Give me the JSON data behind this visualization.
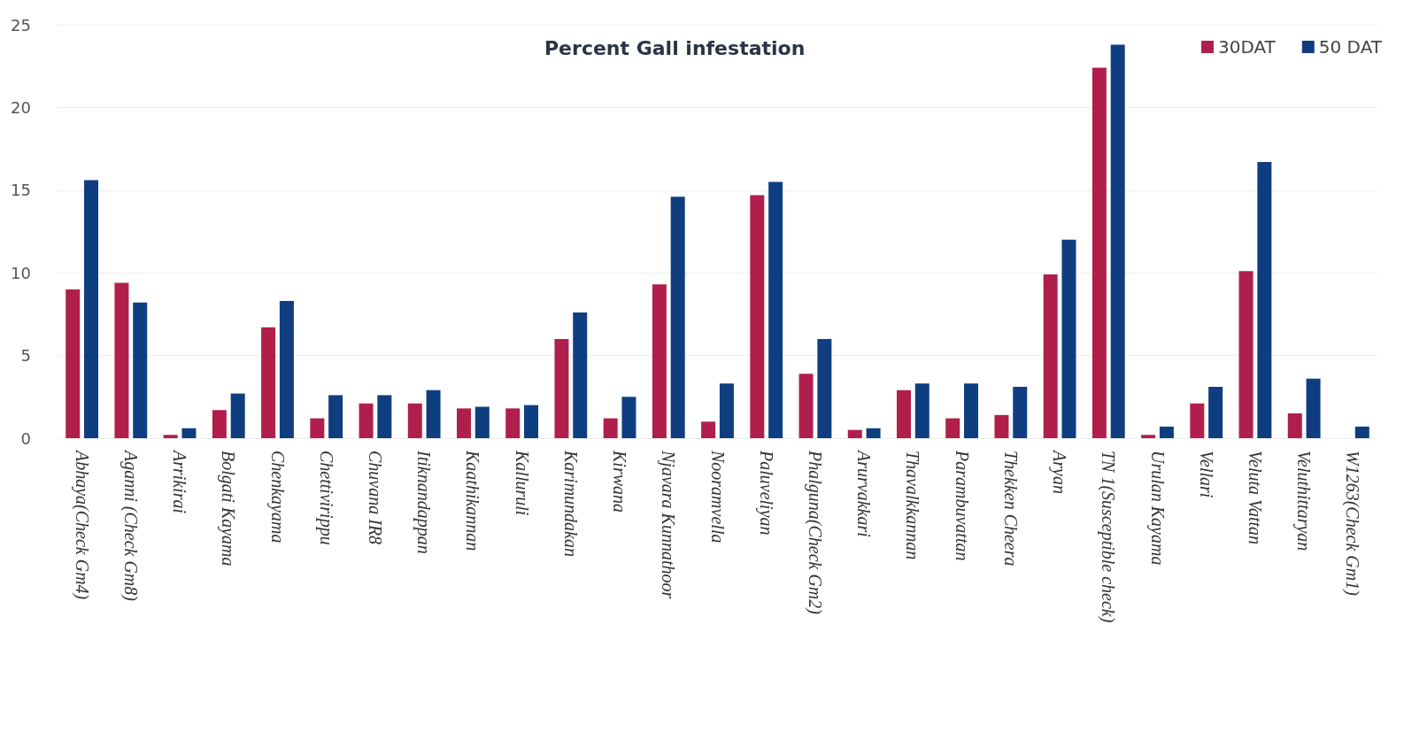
{
  "chart_data": {
    "type": "bar",
    "title": "Percent Gall infestation",
    "categories": [
      "Abhaya(Check Gm4)",
      "Aganni (Check Gm8)",
      "Arrikirai",
      "Bolgati Kayama",
      "Chenkayama",
      "Chettivirippu",
      "Chuvana IR8",
      "Itiknandappan",
      "Kaathikannan",
      "Kalluruli",
      "Karimundakan",
      "Kirwana",
      "Njavara Kunnathoor",
      "Nooramvella",
      "Paluveliyan",
      "Phalguna(Check Gm2)",
      "Arurvakkari",
      "Thavalkkannan",
      "Parambuvattan",
      "Thekken Cheera",
      "Aryan",
      "TN 1(Susceptible check)",
      "Urulan Kayama",
      "Vellari",
      "Veluta Vattan",
      "Veluthittaryan",
      "W1263(Check Gm1)"
    ],
    "series": [
      {
        "name": "30DAT",
        "color": "#b01f4b",
        "values": [
          9.0,
          9.4,
          0.2,
          1.7,
          6.7,
          1.2,
          2.1,
          2.1,
          1.8,
          1.8,
          6.0,
          1.2,
          9.3,
          1.0,
          14.7,
          3.9,
          0.5,
          2.9,
          1.2,
          1.4,
          9.9,
          22.4,
          0.2,
          2.1,
          10.1,
          1.5,
          0
        ]
      },
      {
        "name": "50 DAT",
        "color": "#0f3e80",
        "values": [
          15.6,
          8.2,
          0.6,
          2.7,
          8.3,
          2.6,
          2.6,
          2.9,
          1.9,
          2.0,
          7.6,
          2.5,
          14.6,
          3.3,
          15.5,
          6.0,
          0.6,
          3.3,
          3.3,
          3.1,
          12.0,
          23.8,
          0.7,
          3.1,
          16.7,
          3.6,
          0.7
        ]
      }
    ],
    "ylim": [
      0,
      25
    ],
    "yticks": [
      0,
      5,
      10,
      15,
      20,
      25
    ],
    "grid": "y",
    "legend": "top right"
  }
}
